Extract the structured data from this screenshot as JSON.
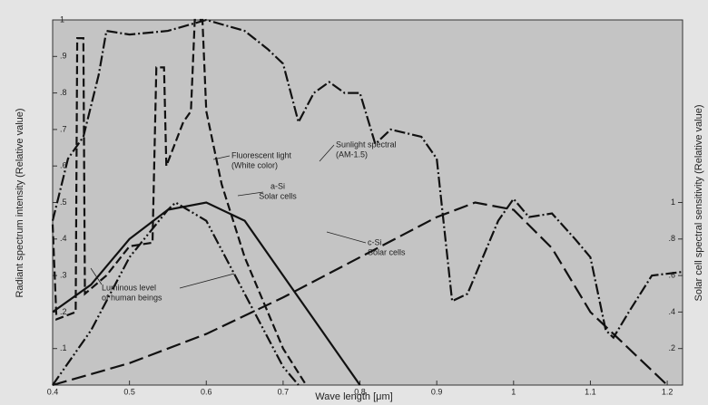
{
  "chart_data": {
    "type": "line",
    "xlabel": "Wave length [μm]",
    "ylabel": "Radiant spectrum intensity (Relative value)",
    "y2label": "Solar cell spectral sensitivity (Relative value)",
    "xlim": [
      0.4,
      1.22
    ],
    "xticks": [
      0.4,
      0.5,
      0.6,
      0.7,
      0.8,
      0.9,
      1.0,
      1.1,
      1.2
    ],
    "ylim": [
      0,
      1
    ],
    "yticks": [
      {
        "value": 0.1,
        "label": ".1"
      },
      {
        "value": 0.2,
        "label": ".2"
      },
      {
        "value": 0.3,
        "label": ".3"
      },
      {
        "value": 0.4,
        "label": ".4"
      },
      {
        "value": 0.5,
        "label": ".5"
      },
      {
        "value": 0.6,
        "label": ".6"
      },
      {
        "value": 0.7,
        "label": ".7"
      },
      {
        "value": 0.8,
        "label": ".8"
      },
      {
        "value": 0.9,
        "label": ".9"
      },
      1
    ],
    "y2lim": [
      0,
      2
    ],
    "y2ticks": [
      {
        "value": 0.2,
        "label": ".2"
      },
      {
        "value": 0.4,
        "label": ".4"
      },
      {
        "value": 0.6,
        "label": ".6"
      },
      {
        "value": 0.8,
        "label": ".8"
      },
      1
    ],
    "series": [
      {
        "color": "#111111",
        "dash": "dashdot",
        "x": [
          0.4,
          0.42,
          0.44,
          0.46,
          0.47,
          0.5,
          0.55,
          0.6,
          0.65,
          0.68,
          0.7,
          0.72,
          0.74,
          0.76,
          0.78,
          0.8,
          0.82,
          0.84,
          0.88,
          0.9,
          0.92,
          0.94,
          0.96,
          0.98,
          1.0,
          1.02,
          1.05,
          1.08,
          1.1,
          1.12,
          1.13,
          1.15,
          1.18,
          1.22
        ],
        "values": [
          0.45,
          0.62,
          0.68,
          0.85,
          0.97,
          0.96,
          0.97,
          1.0,
          0.97,
          0.92,
          0.88,
          0.72,
          0.8,
          0.83,
          0.8,
          0.8,
          0.66,
          0.7,
          0.68,
          0.62,
          0.23,
          0.25,
          0.35,
          0.45,
          0.51,
          0.46,
          0.47,
          0.4,
          0.35,
          0.15,
          0.13,
          0.2,
          0.3,
          0.31
        ]
      },
      {
        "color": "#111111",
        "dash": "dashed",
        "x": [
          0.4,
          0.405,
          0.43,
          0.432,
          0.44,
          0.442,
          0.47,
          0.5,
          0.53,
          0.535,
          0.545,
          0.548,
          0.57,
          0.58,
          0.585,
          0.595,
          0.6,
          0.62,
          0.65,
          0.7,
          0.73
        ],
        "values": [
          0.44,
          0.18,
          0.2,
          0.95,
          0.95,
          0.25,
          0.3,
          0.38,
          0.39,
          0.87,
          0.87,
          0.6,
          0.72,
          0.75,
          1.0,
          1.0,
          0.75,
          0.55,
          0.35,
          0.1,
          0
        ]
      },
      {
        "color": "#111111",
        "dash": "dashdotdot",
        "x": [
          0.4,
          0.45,
          0.5,
          0.55,
          0.56,
          0.6,
          0.65,
          0.7,
          0.72
        ],
        "values": [
          0,
          0.15,
          0.35,
          0.48,
          0.5,
          0.45,
          0.25,
          0.05,
          0
        ]
      },
      {
        "color": "#111111",
        "dash": "solid",
        "axis": "y2",
        "x": [
          0.4,
          0.45,
          0.5,
          0.55,
          0.6,
          0.65,
          0.7,
          0.75,
          0.8
        ],
        "values": [
          0.4,
          0.55,
          0.8,
          0.96,
          1.0,
          0.9,
          0.6,
          0.3,
          0
        ]
      },
      {
        "color": "#111111",
        "dash": "longdash",
        "axis": "y2",
        "x": [
          0.4,
          0.5,
          0.6,
          0.7,
          0.8,
          0.9,
          0.95,
          1.0,
          1.05,
          1.1,
          1.2
        ],
        "values": [
          0,
          0.12,
          0.28,
          0.48,
          0.7,
          0.92,
          1.0,
          0.96,
          0.75,
          0.4,
          0
        ]
      }
    ],
    "annotations": [
      {
        "lines": [
          "Sunlight spectral",
          "(AM-1.5)"
        ]
      },
      {
        "lines": [
          "Fluorescent light",
          "(White color)"
        ]
      },
      {
        "lines": [
          "a-Si",
          "Solar cells"
        ]
      },
      {
        "lines": [
          "c-Si",
          "Solar cells"
        ]
      },
      {
        "lines": [
          "Luminous level",
          "of human beings"
        ]
      }
    ]
  }
}
